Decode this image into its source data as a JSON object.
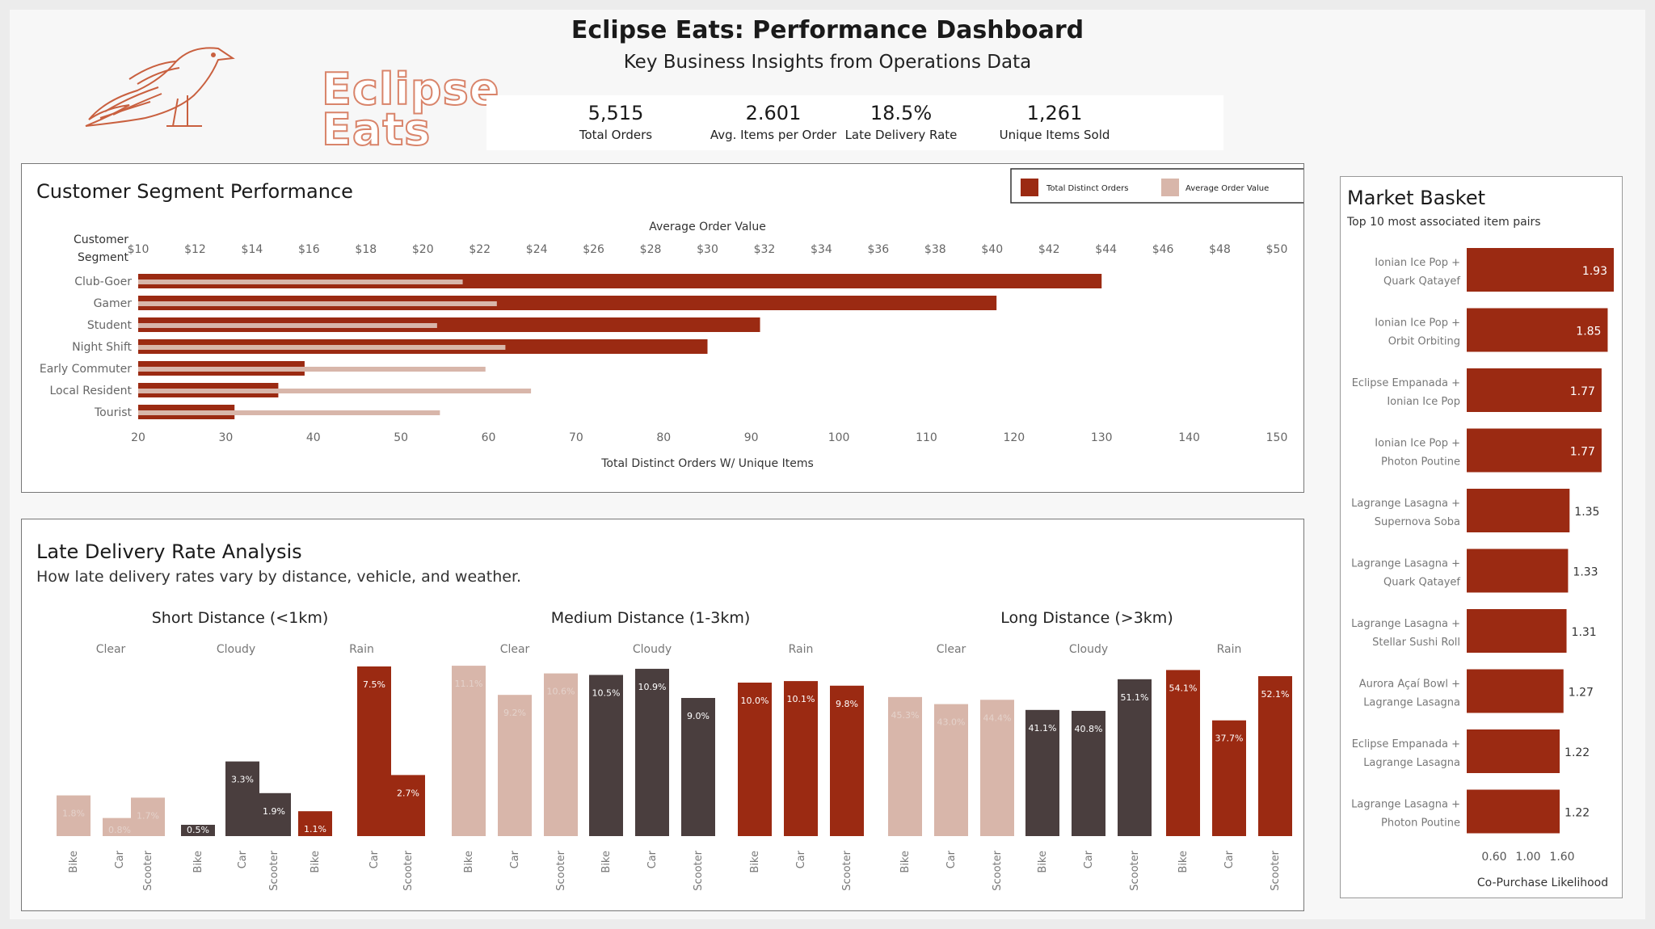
{
  "header": {
    "title": "Eclipse Eats: Performance Dashboard",
    "subtitle": "Key Business Insights from Operations Data",
    "logo_text_line1": "Eclipse",
    "logo_text_line2": "Eats"
  },
  "kpis": [
    {
      "value": "5,515",
      "label": "Total Orders"
    },
    {
      "value": "2.601",
      "label": "Avg. Items per Order"
    },
    {
      "value": "18.5%",
      "label": "Late Delivery Rate"
    },
    {
      "value": "1,261",
      "label": "Unique Items Sold"
    }
  ],
  "colors": {
    "dark_red": "#9b2a12",
    "light_pink": "#d8b6aa",
    "dark_gray": "#4a3e3e"
  },
  "segment_panel": {
    "title": "Customer Segment Performance",
    "legend": [
      "Total Distinct Orders",
      "Average Order Value"
    ]
  },
  "late_panel": {
    "title": "Late Delivery Rate Analysis",
    "subtitle": "How late delivery rates vary by distance, vehicle, and weather."
  },
  "basket_panel": {
    "title": "Market Basket",
    "subtitle": "Top 10 most associated item pairs"
  },
  "chart_data": [
    {
      "type": "bar",
      "orientation": "horizontal",
      "y_header": [
        "Customer",
        "Segment"
      ],
      "categories": [
        "Club-Goer",
        "Gamer",
        "Student",
        "Night Shift",
        "Early Commuter",
        "Local Resident",
        "Tourist"
      ],
      "series": [
        {
          "name": "Total Distinct Orders",
          "values": [
            130,
            118,
            91,
            85,
            39,
            36,
            31
          ]
        },
        {
          "name": "Average Order Value",
          "values": [
            21.4,
            22.6,
            20.5,
            22.9,
            22.2,
            23.8,
            20.6
          ]
        }
      ],
      "xlabel": "Total Distinct Orders W/ Unique Items",
      "x_ticks": [
        "20",
        "30",
        "40",
        "50",
        "60",
        "70",
        "80",
        "90",
        "100",
        "110",
        "120",
        "130",
        "140",
        "150"
      ],
      "xlim": [
        20,
        150
      ],
      "x2label": "Average Order Value",
      "x2_ticks": [
        "$10",
        "$12",
        "$14",
        "$16",
        "$18",
        "$20",
        "$22",
        "$24",
        "$26",
        "$28",
        "$30",
        "$32",
        "$34",
        "$36",
        "$38",
        "$40",
        "$42",
        "$44",
        "$46",
        "$48",
        "$50"
      ],
      "x2lim": [
        10,
        50
      ]
    },
    {
      "type": "bar",
      "groups": [
        {
          "label": "Short Distance (<1km)",
          "weather": [
            "Clear",
            "Cloudy",
            "Rain"
          ]
        },
        {
          "label": "Medium Distance (1-3km)",
          "weather": [
            "Clear",
            "Cloudy",
            "Rain"
          ]
        },
        {
          "label": "Long Distance (>3km)",
          "weather": [
            "Clear",
            "Cloudy",
            "Rain"
          ]
        }
      ],
      "vehicles": [
        "Bike",
        "Car",
        "Scooter"
      ],
      "values": [
        [
          "1.8%",
          "0.8%",
          "1.7%",
          "0.5%",
          "3.3%",
          "1.9%",
          "1.1%",
          "7.5%",
          "2.7%"
        ],
        [
          "11.1%",
          "9.2%",
          "10.6%",
          "10.5%",
          "10.9%",
          "9.0%",
          "10.0%",
          "10.1%",
          "9.8%"
        ],
        [
          "45.3%",
          "43.0%",
          "44.4%",
          "41.1%",
          "40.8%",
          "51.1%",
          "54.1%",
          "37.7%",
          "52.1%"
        ]
      ],
      "value_label_colors": [
        "#e4d2cb",
        "#ffffff"
      ]
    },
    {
      "type": "bar",
      "orientation": "horizontal",
      "categories": [
        [
          "Ionian Ice Pop +",
          "Quark Qatayef"
        ],
        [
          "Ionian Ice Pop +",
          "Orbit Orbiting"
        ],
        [
          "Eclipse Empanada +",
          "Ionian Ice Pop"
        ],
        [
          "Ionian Ice Pop +",
          "Photon Poutine"
        ],
        [
          "Lagrange Lasagna +",
          "Supernova Soba"
        ],
        [
          "Lagrange Lasagna +",
          "Quark Qatayef"
        ],
        [
          "Lagrange Lasagna +",
          "Stellar Sushi Roll"
        ],
        [
          "Aurora Açaí Bowl +",
          "Lagrange Lasagna"
        ],
        [
          "Eclipse Empanada +",
          "Lagrange Lasagna"
        ],
        [
          "Lagrange Lasagna +",
          "Photon Poutine"
        ]
      ],
      "values": [
        1.93,
        1.85,
        1.77,
        1.77,
        1.35,
        1.33,
        1.31,
        1.27,
        1.22,
        1.22
      ],
      "xlabel": "Co-Purchase Likelihood",
      "x_ticks": [
        "0.60",
        "1.00",
        "1.60"
      ]
    }
  ]
}
